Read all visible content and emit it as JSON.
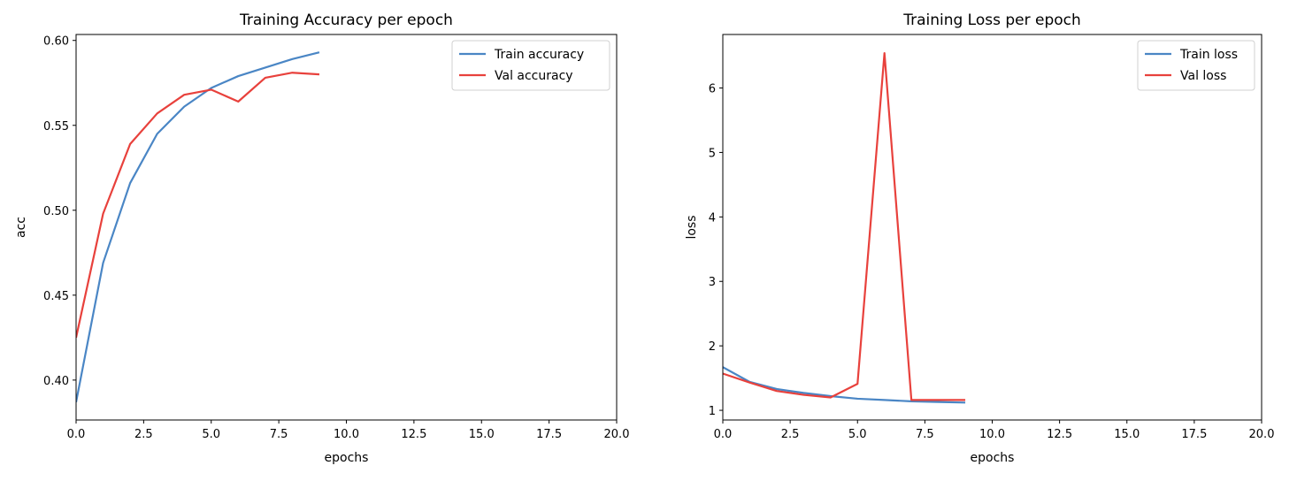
{
  "chart_data": [
    {
      "type": "line",
      "title": "Training Accuracy per epoch",
      "xlabel": "epochs",
      "ylabel": "acc",
      "xlim": [
        0,
        20
      ],
      "ylim": [
        0.3765,
        0.6035
      ],
      "xticks": [
        0,
        2.5,
        5,
        7.5,
        10,
        12.5,
        15,
        17.5,
        20
      ],
      "xtick_labels": [
        "0.0",
        "2.5",
        "5.0",
        "7.5",
        "10.0",
        "12.5",
        "15.0",
        "17.5",
        "20.0"
      ],
      "yticks": [
        0.4,
        0.45,
        0.5,
        0.55,
        0.6
      ],
      "ytick_labels": [
        "0.40",
        "0.45",
        "0.50",
        "0.55",
        "0.60"
      ],
      "grid": false,
      "legend_position": "top-right",
      "x": [
        0,
        1,
        2,
        3,
        4,
        5,
        6,
        7,
        8,
        9
      ],
      "series": [
        {
          "name": "Train accuracy",
          "color": "#4a86c5",
          "values": [
            0.387,
            0.469,
            0.516,
            0.545,
            0.561,
            0.572,
            0.579,
            0.584,
            0.589,
            0.593
          ]
        },
        {
          "name": "Val accuracy",
          "color": "#e8413c",
          "values": [
            0.425,
            0.498,
            0.539,
            0.557,
            0.568,
            0.571,
            0.564,
            0.578,
            0.581,
            0.58
          ]
        }
      ]
    },
    {
      "type": "line",
      "title": "Training Loss per epoch",
      "xlabel": "epochs",
      "ylabel": "loss",
      "xlim": [
        0,
        20
      ],
      "ylim": [
        0.85,
        6.83
      ],
      "xticks": [
        0,
        2.5,
        5,
        7.5,
        10,
        12.5,
        15,
        17.5,
        20
      ],
      "xtick_labels": [
        "0.0",
        "2.5",
        "5.0",
        "7.5",
        "10.0",
        "12.5",
        "15.0",
        "17.5",
        "20.0"
      ],
      "yticks": [
        1,
        2,
        3,
        4,
        5,
        6
      ],
      "ytick_labels": [
        "1",
        "2",
        "3",
        "4",
        "5",
        "6"
      ],
      "grid": false,
      "legend_position": "top-right",
      "x": [
        0,
        1,
        2,
        3,
        4,
        5,
        6,
        7,
        8,
        9
      ],
      "series": [
        {
          "name": "Train loss",
          "color": "#4a86c5",
          "values": [
            1.67,
            1.44,
            1.33,
            1.27,
            1.22,
            1.18,
            1.16,
            1.14,
            1.13,
            1.12
          ]
        },
        {
          "name": "Val loss",
          "color": "#e8413c",
          "values": [
            1.57,
            1.43,
            1.3,
            1.24,
            1.2,
            1.41,
            6.54,
            1.16,
            1.16,
            1.16
          ]
        }
      ]
    }
  ]
}
